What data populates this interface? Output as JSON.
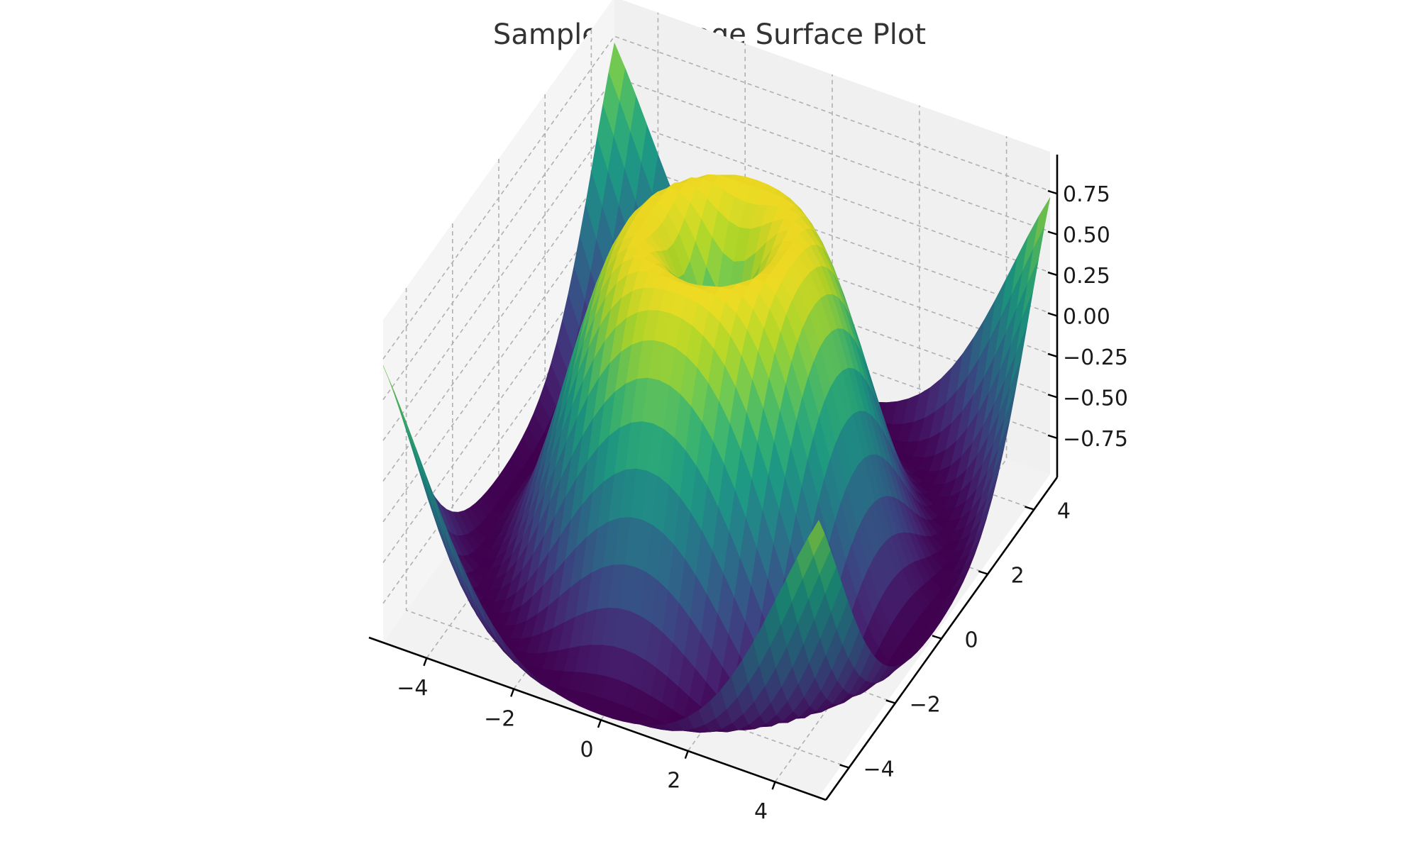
{
  "chart_data": {
    "type": "surface",
    "title": "Sample 3D Image Surface Plot",
    "function": "z = sin(sqrt(x^2 + y^2))",
    "colormap": "viridis",
    "colormap_stops": [
      "#440154",
      "#482878",
      "#3e4989",
      "#31688e",
      "#26828e",
      "#1f9e89",
      "#35b779",
      "#6ece58",
      "#b5de2b",
      "#fde725"
    ],
    "x_range": [
      -5,
      5
    ],
    "y_range": [
      -5,
      5
    ],
    "z_range": [
      -0.99,
      0.99
    ],
    "x_ticks": [
      -4,
      -2,
      0,
      2,
      4
    ],
    "y_ticks": [
      -4,
      -2,
      0,
      2,
      4
    ],
    "z_ticks": [
      -0.75,
      -0.5,
      -0.25,
      0,
      0.25,
      0.5,
      0.75
    ],
    "x_tick_labels": [
      "−4",
      "−2",
      "0",
      "2",
      "4"
    ],
    "y_tick_labels": [
      "−4",
      "−2",
      "0",
      "2",
      "4"
    ],
    "z_tick_labels": [
      "−0.75",
      "−0.50",
      "−0.25",
      "0.00",
      "0.25",
      "0.50",
      "0.75"
    ],
    "grid": true,
    "pane_color": "#f2f2f2",
    "grid_color": "#b0b0b0",
    "xlabel": "",
    "ylabel": "",
    "zlabel": ""
  }
}
